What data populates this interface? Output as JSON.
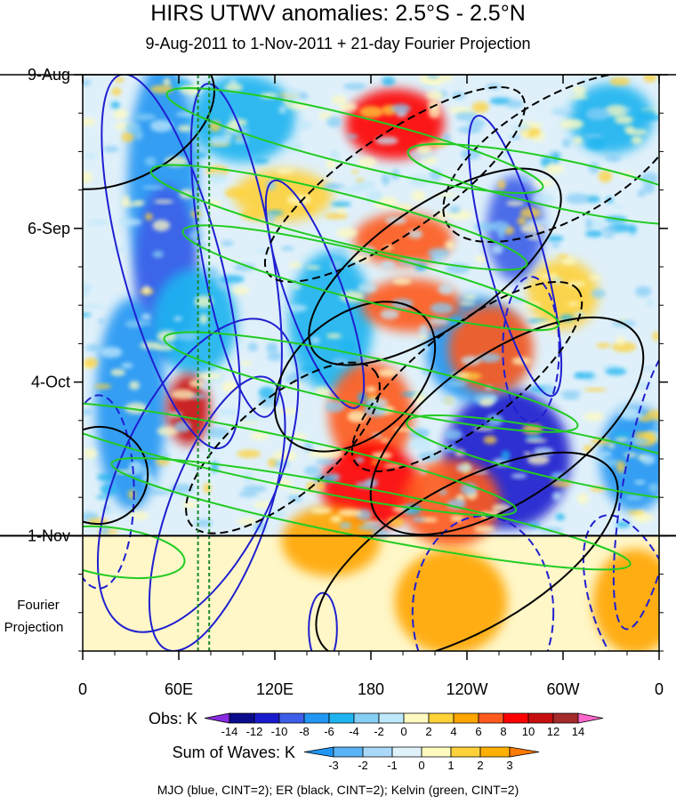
{
  "chart_data": {
    "type": "heatmap",
    "title": "HIRS UTWV anomalies: 2.5°S - 2.5°N",
    "subtitle": "9-Aug-2011 to 1-Nov-2011 + 21-day Fourier Projection",
    "x_tick_labels": [
      "0",
      "60E",
      "120E",
      "180",
      "120W",
      "60W",
      "0"
    ],
    "x_tick_longitudes": [
      0,
      60,
      120,
      180,
      240,
      300,
      360
    ],
    "y_tick_labels": [
      "9-Aug",
      "6-Sep",
      "4-Oct",
      "1-Nov"
    ],
    "y_tick_day_offsets": [
      0,
      28,
      56,
      84
    ],
    "projection_days": 21,
    "projection_label_line1": "Fourier",
    "projection_label_line2": "Projection",
    "projection_reference_lines_longitude": [
      72,
      79
    ],
    "obs_legend": {
      "label": "Obs: K",
      "levels": [
        "-14",
        "-12",
        "-10",
        "-8",
        "-6",
        "-4",
        "-2",
        "0",
        "2",
        "4",
        "6",
        "8",
        "10",
        "12",
        "14"
      ],
      "colors": [
        "#8a2be2",
        "#0b0b8c",
        "#1a1acd",
        "#3d5ee8",
        "#2196f3",
        "#1eb4f0",
        "#87cef5",
        "#bfe8fb",
        "#fffbc0",
        "#ffd23a",
        "#ffa500",
        "#ff5a1e",
        "#ff0000",
        "#c80f0f",
        "#a52a2a",
        "#ff66cc"
      ]
    },
    "waves_legend": {
      "label": "Sum of Waves: K",
      "levels": [
        "-3",
        "-2",
        "-1",
        "0",
        "1",
        "2",
        "3"
      ],
      "colors": [
        "#2196f3",
        "#5ab4f5",
        "#a9d8f8",
        "#dff2fb",
        "#fffbc0",
        "#ffd23a",
        "#ffb000",
        "#ff7a00"
      ]
    },
    "footer": "MJO (blue, CINT=2); ER (black, CINT=2); Kelvin (green, CINT=2)",
    "contour_colors": {
      "mjo": "#1f1fd0",
      "er": "#000000",
      "kelvin": "#22cc22"
    },
    "contours": {
      "mjo": [
        {
          "lon": 55,
          "day": 34,
          "rx": 14,
          "ry": 16,
          "rot": -15,
          "dash": false
        },
        {
          "lon": 96,
          "day": 32,
          "rx": 10,
          "ry": 14,
          "rot": -10,
          "dash": false
        },
        {
          "lon": 72,
          "day": 73,
          "rx": 22,
          "ry": 14,
          "rot": 25,
          "dash": false
        },
        {
          "lon": 84,
          "day": 80,
          "rx": 14,
          "ry": 12,
          "rot": 20,
          "dash": false
        },
        {
          "lon": 145,
          "day": 40,
          "rx": 8,
          "ry": 10,
          "rot": -20,
          "dash": false
        },
        {
          "lon": 150,
          "day": 101,
          "rx": 4,
          "ry": 3,
          "rot": 0,
          "dash": false
        },
        {
          "lon": 270,
          "day": 33,
          "rx": 8,
          "ry": 12,
          "rot": -15,
          "dash": false
        },
        {
          "lon": 280,
          "day": 50,
          "rx": 8,
          "ry": 6,
          "rot": 0,
          "dash": true
        },
        {
          "lon": 250,
          "day": 98,
          "rx": 20,
          "ry": 8,
          "rot": 0,
          "dash": true
        },
        {
          "lon": 345,
          "day": 97,
          "rx": 12,
          "ry": 8,
          "rot": -20,
          "dash": true
        },
        {
          "lon": 355,
          "day": 75,
          "rx": 8,
          "ry": 12,
          "rot": 10,
          "dash": true
        },
        {
          "lon": 10,
          "day": 76,
          "rx": 10,
          "ry": 8,
          "rot": 0,
          "dash": true
        }
      ],
      "er": [
        {
          "lon": 25,
          "day": 8,
          "rx": 28,
          "ry": 5,
          "rot": -28,
          "dash": false
        },
        {
          "lon": 220,
          "day": 35,
          "rx": 42,
          "ry": 5,
          "rot": -35,
          "dash": false
        },
        {
          "lon": 265,
          "day": 64,
          "rx": 45,
          "ry": 6,
          "rot": -35,
          "dash": false
        },
        {
          "lon": 240,
          "day": 88,
          "rx": 48,
          "ry": 6,
          "rot": -30,
          "dash": false
        },
        {
          "lon": 170,
          "day": 55,
          "rx": 26,
          "ry": 5,
          "rot": -40,
          "dash": false
        },
        {
          "lon": 125,
          "day": 68,
          "rx": 34,
          "ry": 4,
          "rot": -40,
          "dash": true
        },
        {
          "lon": 300,
          "day": 15,
          "rx": 38,
          "ry": 5,
          "rot": -30,
          "dash": true
        },
        {
          "lon": 195,
          "day": 20,
          "rx": 44,
          "ry": 4,
          "rot": -35,
          "dash": true
        },
        {
          "lon": 240,
          "day": 55,
          "rx": 40,
          "ry": 4,
          "rot": -38,
          "dash": true
        },
        {
          "lon": 10,
          "day": 73,
          "rx": 14,
          "ry": 4,
          "rot": -30,
          "dash": false
        }
      ],
      "kelvin": [
        {
          "lon": 170,
          "day": 12,
          "rx": 55,
          "ry": 2,
          "rot": 14,
          "dash": false
        },
        {
          "lon": 160,
          "day": 26,
          "rx": 55,
          "ry": 2,
          "rot": 14,
          "dash": false
        },
        {
          "lon": 180,
          "day": 37,
          "rx": 55,
          "ry": 2,
          "rot": 14,
          "dash": false
        },
        {
          "lon": 180,
          "day": 56,
          "rx": 60,
          "ry": 2,
          "rot": 12,
          "dash": false
        },
        {
          "lon": 120,
          "day": 70,
          "rx": 70,
          "ry": 2,
          "rot": 12,
          "dash": false
        },
        {
          "lon": 180,
          "day": 80,
          "rx": 75,
          "ry": 2,
          "rot": 11,
          "dash": false
        },
        {
          "lon": 300,
          "day": 20,
          "rx": 45,
          "ry": 2,
          "rot": 12,
          "dash": false
        },
        {
          "lon": 310,
          "day": 70,
          "rx": 50,
          "ry": 2,
          "rot": 12,
          "dash": false
        },
        {
          "lon": 20,
          "day": 87,
          "rx": 20,
          "ry": 2,
          "rot": 8,
          "dash": false
        }
      ]
    },
    "anomaly_blobs": [
      {
        "lon": 50,
        "day": 20,
        "rx": 10,
        "ry": 14,
        "level": -3
      },
      {
        "lon": 52,
        "day": 36,
        "rx": 9,
        "ry": 10,
        "level": -4
      },
      {
        "lon": 30,
        "day": 60,
        "rx": 10,
        "ry": 12,
        "level": -3
      },
      {
        "lon": 155,
        "day": 45,
        "rx": 12,
        "ry": 8,
        "level": -2
      },
      {
        "lon": 265,
        "day": 70,
        "rx": 18,
        "ry": 8,
        "level": -5
      },
      {
        "lon": 270,
        "day": 28,
        "rx": 8,
        "ry": 6,
        "level": -4
      },
      {
        "lon": 245,
        "day": 50,
        "rx": 14,
        "ry": 6,
        "level": -3
      },
      {
        "lon": 345,
        "day": 70,
        "rx": 10,
        "ry": 6,
        "level": -3
      },
      {
        "lon": 330,
        "day": 8,
        "rx": 12,
        "ry": 4,
        "level": -2
      },
      {
        "lon": 100,
        "day": 8,
        "rx": 15,
        "ry": 5,
        "level": -2
      },
      {
        "lon": 70,
        "day": 45,
        "rx": 12,
        "ry": 6,
        "level": -2
      },
      {
        "lon": 195,
        "day": 9,
        "rx": 14,
        "ry": 4,
        "level": 5
      },
      {
        "lon": 200,
        "day": 30,
        "rx": 14,
        "ry": 3,
        "level": 4
      },
      {
        "lon": 205,
        "day": 42,
        "rx": 14,
        "ry": 3,
        "level": 4
      },
      {
        "lon": 255,
        "day": 50,
        "rx": 12,
        "ry": 5,
        "level": 4
      },
      {
        "lon": 180,
        "day": 62,
        "rx": 12,
        "ry": 6,
        "level": 4
      },
      {
        "lon": 180,
        "day": 75,
        "rx": 14,
        "ry": 5,
        "level": 5
      },
      {
        "lon": 230,
        "day": 78,
        "rx": 14,
        "ry": 5,
        "level": 4
      },
      {
        "lon": 66,
        "day": 61,
        "rx": 6,
        "ry": 4,
        "level": 6
      },
      {
        "lon": 155,
        "day": 85,
        "rx": 14,
        "ry": 4,
        "level": 3
      },
      {
        "lon": 230,
        "day": 96,
        "rx": 16,
        "ry": 6,
        "level": 3
      },
      {
        "lon": 345,
        "day": 96,
        "rx": 12,
        "ry": 6,
        "level": 3
      },
      {
        "lon": 125,
        "day": 22,
        "rx": 14,
        "ry": 3,
        "level": 2
      },
      {
        "lon": 300,
        "day": 40,
        "rx": 10,
        "ry": 4,
        "level": 2
      }
    ]
  }
}
